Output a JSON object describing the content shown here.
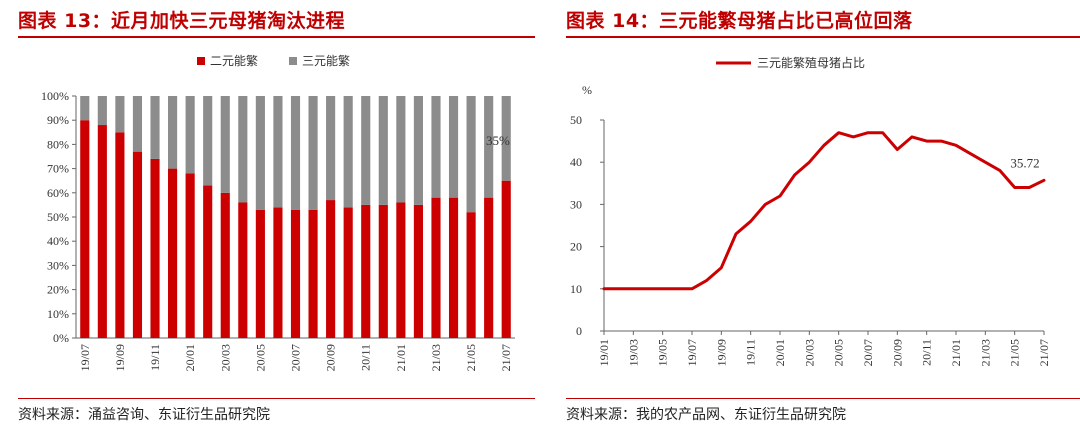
{
  "chart_data": [
    {
      "type": "bar",
      "stacked": true,
      "title": "图表 13：近月加快三元母猪淘汰进程",
      "source": "资料来源：涌益咨询、东证衍生品研究院",
      "categories": [
        "19/07",
        "19/08",
        "19/09",
        "19/10",
        "19/11",
        "19/12",
        "20/01",
        "20/02",
        "20/03",
        "20/04",
        "20/05",
        "20/06",
        "20/07",
        "20/08",
        "20/09",
        "20/10",
        "20/11",
        "20/12",
        "21/01",
        "21/02",
        "21/03",
        "21/04",
        "21/05",
        "21/06",
        "21/07"
      ],
      "tick_labels": [
        "19/07",
        "19/09",
        "19/11",
        "20/01",
        "20/03",
        "20/05",
        "20/07",
        "20/09",
        "20/11",
        "21/01",
        "21/03",
        "21/05",
        "21/07"
      ],
      "series": [
        {
          "name": "二元能繁",
          "color": "#cc0000",
          "values": [
            90,
            88,
            85,
            77,
            74,
            70,
            68,
            63,
            60,
            56,
            53,
            54,
            53,
            53,
            57,
            54,
            55,
            55,
            56,
            55,
            58,
            58,
            52,
            58,
            65
          ]
        },
        {
          "name": "三元能繁",
          "color": "#8c8c8c",
          "values": [
            10,
            12,
            15,
            23,
            26,
            30,
            32,
            37,
            40,
            44,
            47,
            46,
            47,
            47,
            43,
            46,
            45,
            45,
            44,
            45,
            42,
            42,
            48,
            42,
            35
          ]
        }
      ],
      "y_ticks": [
        "0%",
        "10%",
        "20%",
        "30%",
        "40%",
        "50%",
        "60%",
        "70%",
        "80%",
        "90%",
        "100%"
      ],
      "ylim": [
        0,
        100
      ],
      "annotation": "35%",
      "legend": "top-center"
    },
    {
      "type": "line",
      "title": "图表 14：三元能繁母猪占比已高位回落",
      "source": "资料来源：我的农产品网、东证衍生品研究院",
      "ylabel": "%",
      "x": [
        "19/01",
        "19/02",
        "19/03",
        "19/04",
        "19/05",
        "19/06",
        "19/07",
        "19/08",
        "19/09",
        "19/10",
        "19/11",
        "19/12",
        "20/01",
        "20/02",
        "20/03",
        "20/04",
        "20/05",
        "20/06",
        "20/07",
        "20/08",
        "20/09",
        "20/10",
        "20/11",
        "20/12",
        "21/01",
        "21/02",
        "21/03",
        "21/04",
        "21/05",
        "21/06",
        "21/07"
      ],
      "tick_labels": [
        "19/01",
        "19/03",
        "19/05",
        "19/07",
        "19/09",
        "19/11",
        "20/01",
        "20/03",
        "20/05",
        "20/07",
        "20/09",
        "20/11",
        "21/01",
        "21/03",
        "21/05",
        "21/07"
      ],
      "series": [
        {
          "name": "三元能繁殖母猪占比",
          "color": "#cc0000",
          "values": [
            10,
            10,
            10,
            10,
            10,
            10,
            10,
            12,
            15,
            23,
            26,
            30,
            32,
            37,
            40,
            44,
            47,
            46,
            47,
            47,
            43,
            46,
            45,
            45,
            44,
            42,
            40,
            38,
            34,
            34,
            35.72
          ]
        }
      ],
      "y_ticks": [
        "0",
        "10",
        "20",
        "30",
        "40",
        "50"
      ],
      "ylim": [
        0,
        50
      ],
      "annotation": "35.72",
      "legend": "top-center"
    }
  ]
}
